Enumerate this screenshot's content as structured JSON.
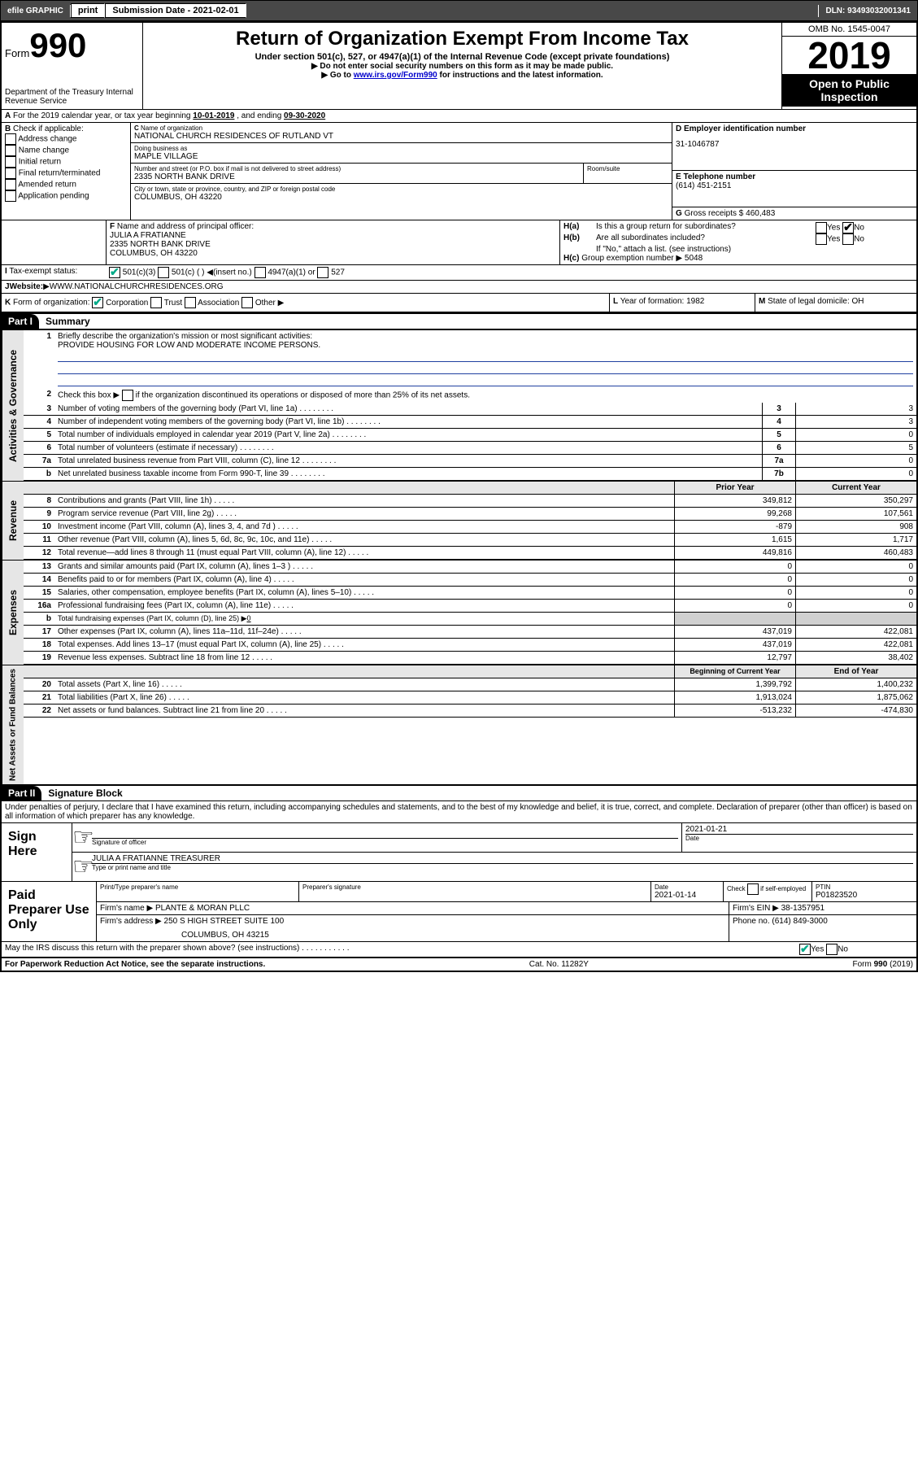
{
  "topbar": {
    "efile": "efile GRAPHIC",
    "print": "print",
    "subdate_label": "Submission Date - 2021-02-01",
    "dln": "DLN: 93493032001341"
  },
  "header": {
    "form_label": "Form",
    "form_num": "990",
    "dept": "Department of the Treasury\nInternal Revenue Service",
    "title": "Return of Organization Exempt From Income Tax",
    "sub": "Under section 501(c), 527, or 4947(a)(1) of the Internal Revenue Code (except private foundations)",
    "line2": "Do not enter social security numbers on this form as it may be made public.",
    "line3a": "Go to ",
    "line3link": "www.irs.gov/Form990",
    "line3b": " for instructions and the latest information.",
    "omb": "OMB No. 1545-0047",
    "year": "2019",
    "inspect": "Open to Public Inspection"
  },
  "secA": {
    "label": "A",
    "text": "For the 2019 calendar year, or tax year beginning ",
    "begin": "10-01-2019",
    "mid": " , and ending ",
    "end": "09-30-2020"
  },
  "secB": {
    "label": "B",
    "intro": "Check if applicable:",
    "items": [
      "Address change",
      "Name change",
      "Initial return",
      "Final return/terminated",
      "Amended return",
      "Application pending"
    ]
  },
  "secC": {
    "label": "C",
    "name_label": "Name of organization",
    "name": "NATIONAL CHURCH RESIDENCES OF RUTLAND VT",
    "dba_label": "Doing business as",
    "dba": "MAPLE VILLAGE",
    "addr_label": "Number and street (or P.O. box if mail is not delivered to street address)",
    "room_label": "Room/suite",
    "addr": "2335 NORTH BANK DRIVE",
    "city_label": "City or town, state or province, country, and ZIP or foreign postal code",
    "city": "COLUMBUS, OH  43220"
  },
  "secD": {
    "label": "D Employer identification number",
    "ein": "31-1046787"
  },
  "secE": {
    "label": "E Telephone number",
    "phone": "(614) 451-2151"
  },
  "secG": {
    "label": "G",
    "text": "Gross receipts $",
    "val": "460,483"
  },
  "secF": {
    "label": "F",
    "text": "Name and address of principal officer:",
    "name": "JULIA A FRATIANNE",
    "addr1": "2335 NORTH BANK DRIVE",
    "addr2": "COLUMBUS, OH  43220"
  },
  "secH": {
    "ha": "H(a)",
    "ha_text": "Is this a group return for subordinates?",
    "hb": "H(b)",
    "hb_text": "Are all subordinates included?",
    "hb_note": "If \"No,\" attach a list. (see instructions)",
    "hc": "H(c)",
    "hc_text": "Group exemption number",
    "hc_val": "5048",
    "yes": "Yes",
    "no": "No"
  },
  "secI": {
    "label": "I",
    "text": "Tax-exempt status:",
    "opt1": "501(c)(3)",
    "opt2": "501(c) (  )",
    "opt2b": "(insert no.)",
    "opt3": "4947(a)(1) or",
    "opt4": "527"
  },
  "secJ": {
    "label": "J",
    "text": "Website:",
    "val": "WWW.NATIONALCHURCHRESIDENCES.ORG"
  },
  "secK": {
    "label": "K",
    "text": "Form of organization:",
    "opts": [
      "Corporation",
      "Trust",
      "Association",
      "Other"
    ]
  },
  "secL": {
    "label": "L",
    "text": "Year of formation:",
    "val": "1982"
  },
  "secM": {
    "label": "M",
    "text": "State of legal domicile:",
    "val": "OH"
  },
  "part1": {
    "tag": "Part I",
    "title": "Summary",
    "q1_no": "1",
    "q1": "Briefly describe the organization's mission or most significant activities:",
    "q1_val": "PROVIDE HOUSING FOR LOW AND MODERATE INCOME PERSONS.",
    "q2_no": "2",
    "q2": "Check this box ▶",
    "q2b": "if the organization discontinued its operations or disposed of more than 25% of its net assets.",
    "vtab1": "Activities & Governance",
    "vtab2": "Revenue",
    "vtab3": "Expenses",
    "vtab4": "Net Assets or Fund Balances",
    "lines_gov": [
      {
        "no": "3",
        "desc": "Number of voting members of the governing body (Part VI, line 1a)",
        "box": "3",
        "val": "3"
      },
      {
        "no": "4",
        "desc": "Number of independent voting members of the governing body (Part VI, line 1b)",
        "box": "4",
        "val": "3"
      },
      {
        "no": "5",
        "desc": "Total number of individuals employed in calendar year 2019 (Part V, line 2a)",
        "box": "5",
        "val": "0"
      },
      {
        "no": "6",
        "desc": "Total number of volunteers (estimate if necessary)",
        "box": "6",
        "val": "5"
      },
      {
        "no": "7a",
        "desc": "Total unrelated business revenue from Part VIII, column (C), line 12",
        "box": "7a",
        "val": "0"
      },
      {
        "no": "b",
        "desc": "Net unrelated business taxable income from Form 990-T, line 39",
        "box": "7b",
        "val": "0"
      }
    ],
    "col_prior": "Prior Year",
    "col_current": "Current Year",
    "col_boy": "Beginning of Current Year",
    "col_eoy": "End of Year",
    "lines_rev": [
      {
        "no": "8",
        "desc": "Contributions and grants (Part VIII, line 1h)",
        "prior": "349,812",
        "cur": "350,297"
      },
      {
        "no": "9",
        "desc": "Program service revenue (Part VIII, line 2g)",
        "prior": "99,268",
        "cur": "107,561"
      },
      {
        "no": "10",
        "desc": "Investment income (Part VIII, column (A), lines 3, 4, and 7d )",
        "prior": "-879",
        "cur": "908"
      },
      {
        "no": "11",
        "desc": "Other revenue (Part VIII, column (A), lines 5, 6d, 8c, 9c, 10c, and 11e)",
        "prior": "1,615",
        "cur": "1,717"
      },
      {
        "no": "12",
        "desc": "Total revenue—add lines 8 through 11 (must equal Part VIII, column (A), line 12)",
        "prior": "449,816",
        "cur": "460,483"
      }
    ],
    "lines_exp": [
      {
        "no": "13",
        "desc": "Grants and similar amounts paid (Part IX, column (A), lines 1–3 )",
        "prior": "0",
        "cur": "0"
      },
      {
        "no": "14",
        "desc": "Benefits paid to or for members (Part IX, column (A), line 4)",
        "prior": "0",
        "cur": "0"
      },
      {
        "no": "15",
        "desc": "Salaries, other compensation, employee benefits (Part IX, column (A), lines 5–10)",
        "prior": "0",
        "cur": "0"
      },
      {
        "no": "16a",
        "desc": "Professional fundraising fees (Part IX, column (A), line 11e)",
        "prior": "0",
        "cur": "0"
      },
      {
        "no": "b",
        "desc": "Total fundraising expenses (Part IX, column (D), line 25) ▶",
        "val16b": "0",
        "grey": true
      },
      {
        "no": "17",
        "desc": "Other expenses (Part IX, column (A), lines 11a–11d, 11f–24e)",
        "prior": "437,019",
        "cur": "422,081"
      },
      {
        "no": "18",
        "desc": "Total expenses. Add lines 13–17 (must equal Part IX, column (A), line 25)",
        "prior": "437,019",
        "cur": "422,081"
      },
      {
        "no": "19",
        "desc": "Revenue less expenses. Subtract line 18 from line 12",
        "prior": "12,797",
        "cur": "38,402"
      }
    ],
    "lines_net": [
      {
        "no": "20",
        "desc": "Total assets (Part X, line 16)",
        "prior": "1,399,792",
        "cur": "1,400,232"
      },
      {
        "no": "21",
        "desc": "Total liabilities (Part X, line 26)",
        "prior": "1,913,024",
        "cur": "1,875,062"
      },
      {
        "no": "22",
        "desc": "Net assets or fund balances. Subtract line 21 from line 20",
        "prior": "-513,232",
        "cur": "-474,830"
      }
    ]
  },
  "part2": {
    "tag": "Part II",
    "title": "Signature Block",
    "perjury": "Under penalties of perjury, I declare that I have examined this return, including accompanying schedules and statements, and to the best of my knowledge and belief, it is true, correct, and complete. Declaration of preparer (other than officer) is based on all information of which preparer has any knowledge."
  },
  "sign": {
    "here": "Sign Here",
    "sig_officer": "Signature of officer",
    "date": "Date",
    "date_val": "2021-01-21",
    "name_title": "JULIA A FRATIANNE  TREASURER",
    "name_label": "Type or print name and title"
  },
  "paid": {
    "label": "Paid Preparer Use Only",
    "col1": "Print/Type preparer's name",
    "col2": "Preparer's signature",
    "col3": "Date",
    "date_val": "2021-01-14",
    "col4a": "Check",
    "col4b": "if self-employed",
    "col5": "PTIN",
    "ptin": "P01823520",
    "firm_name_label": "Firm's name",
    "firm_name": "PLANTE & MORAN PLLC",
    "firm_ein_label": "Firm's EIN",
    "firm_ein": "38-1357951",
    "firm_addr_label": "Firm's address",
    "firm_addr": "250 S HIGH STREET SUITE 100",
    "firm_city": "COLUMBUS, OH  43215",
    "phone_label": "Phone no.",
    "phone": "(614) 849-3000"
  },
  "discuss": {
    "text": "May the IRS discuss this return with the preparer shown above? (see instructions)",
    "yes": "Yes",
    "no": "No"
  },
  "footer": {
    "left": "For Paperwork Reduction Act Notice, see the separate instructions.",
    "mid": "Cat. No. 11282Y",
    "right": "Form 990 (2019)"
  }
}
